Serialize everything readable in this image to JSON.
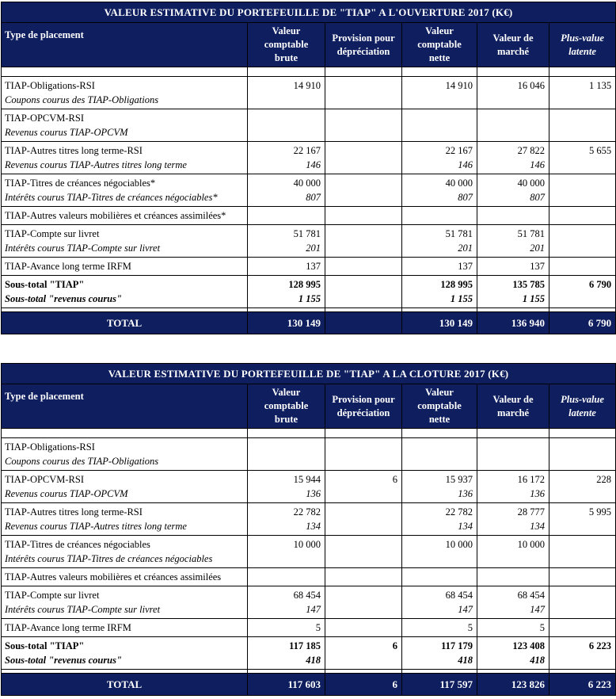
{
  "colors": {
    "navy_header": "#0e1e5e",
    "header_text": "#ffffff",
    "border": "#000000",
    "body_text": "#000000"
  },
  "tables": [
    {
      "title": "VALEUR ESTIMATIVE DU PORTEFEUILLE DE \"TIAP\" A L'OUVERTURE 2017 (K€)",
      "headers": [
        "Type de placement",
        "Valeur comptable brute",
        "Provision pour dépréciation",
        "Valeur comptable nette",
        "Valeur de marché",
        "Plus-value latente"
      ],
      "rows": [
        {
          "label": "TIAP-Obligations-RSI",
          "sublabel": "Coupons courus des TIAP-Obligations",
          "values": [
            "14 910",
            "",
            "14 910",
            "16 046",
            "1 135"
          ],
          "subvalues": [
            "",
            "",
            "",
            "",
            ""
          ]
        },
        {
          "label": "TIAP-OPCVM-RSI",
          "sublabel": "Revenus courus TIAP-OPCVM",
          "values": [
            "",
            "",
            "",
            "",
            ""
          ],
          "subvalues": [
            "",
            "",
            "",
            "",
            ""
          ]
        },
        {
          "label": "TIAP-Autres titres long terme-RSI",
          "sublabel": "Revenus courus TIAP-Autres titres long terme",
          "values": [
            "22 167",
            "",
            "22 167",
            "27 822",
            "5 655"
          ],
          "subvalues": [
            "146",
            "",
            "146",
            "146",
            ""
          ]
        },
        {
          "label": "TIAP-Titres de créances négociables*",
          "sublabel": "Intérêts courus TIAP-Titres de créances négociables*",
          "values": [
            "40 000",
            "",
            "40 000",
            "40 000",
            ""
          ],
          "subvalues": [
            "807",
            "",
            "807",
            "807",
            ""
          ]
        },
        {
          "label": "TIAP-Autres valeurs mobilières et créances assimilées*",
          "values": [
            "",
            "",
            "",
            "",
            ""
          ]
        },
        {
          "label": "TIAP-Compte sur livret",
          "sublabel": "Intérêts courus TIAP-Compte sur livret",
          "values": [
            "51 781",
            "",
            "51 781",
            "51 781",
            ""
          ],
          "subvalues": [
            "201",
            "",
            "201",
            "201",
            ""
          ]
        },
        {
          "label": "TIAP-Avance long terme IRFM",
          "values": [
            "137",
            "",
            "137",
            "137",
            ""
          ]
        },
        {
          "label": "Sous-total \"TIAP\"",
          "sublabel": "Sous-total \"revenus courus\"",
          "bold": true,
          "values": [
            "128 995",
            "",
            "128 995",
            "135 785",
            "6 790"
          ],
          "subvalues": [
            "1 155",
            "",
            "1 155",
            "1 155",
            ""
          ]
        }
      ],
      "total_label": "TOTAL",
      "total_values": [
        "130 149",
        "",
        "130 149",
        "136 940",
        "6 790"
      ]
    },
    {
      "title": "VALEUR ESTIMATIVE DU PORTEFEUILLE DE \"TIAP\" A LA CLOTURE 2017 (K€)",
      "headers": [
        "Type de placement",
        "Valeur comptable brute",
        "Provision pour dépréciation",
        "Valeur comptable nette",
        "Valeur de marché",
        "Plus-value latente"
      ],
      "rows": [
        {
          "label": "TIAP-Obligations-RSI",
          "sublabel": "Coupons courus des TIAP-Obligations",
          "values": [
            "",
            "",
            "",
            "",
            ""
          ],
          "subvalues": [
            "",
            "",
            "",
            "",
            ""
          ]
        },
        {
          "label": "TIAP-OPCVM-RSI",
          "sublabel": "Revenus courus TIAP-OPCVM",
          "values": [
            "15 944",
            "6",
            "15 937",
            "16 172",
            "228"
          ],
          "subvalues": [
            "136",
            "",
            "136",
            "136",
            ""
          ]
        },
        {
          "label": "TIAP-Autres titres long terme-RSI",
          "sublabel": "Revenus courus TIAP-Autres titres long terme",
          "values": [
            "22 782",
            "",
            "22 782",
            "28 777",
            "5 995"
          ],
          "subvalues": [
            "134",
            "",
            "134",
            "134",
            ""
          ]
        },
        {
          "label": "TIAP-Titres de créances négociables",
          "sublabel": "Intérêts courus TIAP-Titres de créances négociables",
          "values": [
            "10 000",
            "",
            "10 000",
            "10 000",
            ""
          ],
          "subvalues": [
            "",
            "",
            "",
            "",
            ""
          ]
        },
        {
          "label": "TIAP-Autres valeurs mobilières et créances assimilées",
          "values": [
            "",
            "",
            "",
            "",
            ""
          ]
        },
        {
          "label": "TIAP-Compte sur livret",
          "sublabel": "Intérêts courus TIAP-Compte sur livret",
          "values": [
            "68 454",
            "",
            "68 454",
            "68 454",
            ""
          ],
          "subvalues": [
            "147",
            "",
            "147",
            "147",
            ""
          ]
        },
        {
          "label": "TIAP-Avance long terme IRFM",
          "values": [
            "5",
            "",
            "5",
            "5",
            ""
          ]
        },
        {
          "label": "Sous-total \"TIAP\"",
          "sublabel": "Sous-total \"revenus courus\"",
          "bold": true,
          "values": [
            "117 185",
            "6",
            "117 179",
            "123 408",
            "6 223"
          ],
          "subvalues": [
            "418",
            "",
            "418",
            "418",
            ""
          ]
        }
      ],
      "total_label": "TOTAL",
      "total_values": [
        "117 603",
        "6",
        "117 597",
        "123 826",
        "6 223"
      ]
    }
  ]
}
